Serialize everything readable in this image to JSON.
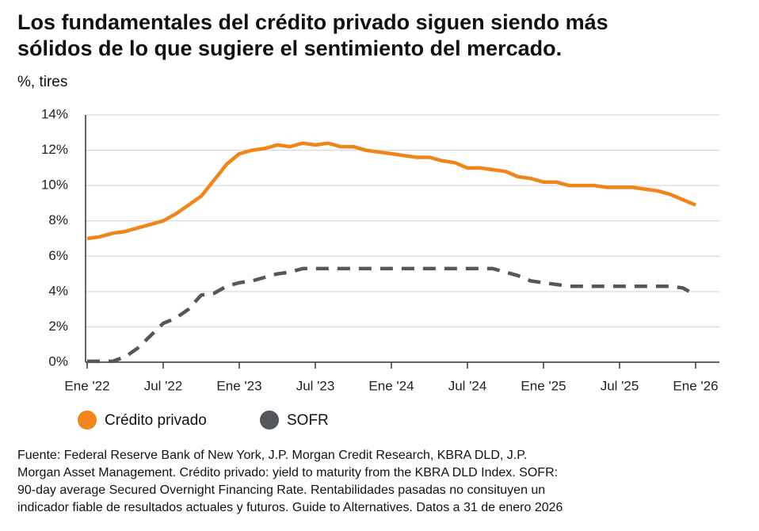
{
  "chart_data": {
    "type": "line",
    "title_lines": [
      "Los fundamentales del crédito privado siguen siendo más",
      "sólidos de lo que sugiere el sentimiento del mercado."
    ],
    "y_label": "%, tires",
    "categories": [
      "Ene '22",
      null,
      null,
      null,
      null,
      null,
      "Jul '22",
      null,
      null,
      null,
      null,
      null,
      "Ene '23",
      null,
      null,
      null,
      null,
      null,
      "Jul '23",
      null,
      null,
      null,
      null,
      null,
      "Ene '24",
      null,
      null,
      null,
      null,
      null,
      "Jul '24",
      null,
      null,
      null,
      null,
      null,
      "Ene '25",
      null,
      null,
      null,
      null,
      null,
      "Jul '25",
      null,
      null,
      null,
      null,
      null,
      "Ene '26"
    ],
    "series": [
      {
        "name": "Crédito privado",
        "color": "#f0851a",
        "style": "solid",
        "values": [
          7.0,
          7.1,
          7.3,
          7.4,
          7.6,
          7.8,
          8.0,
          8.4,
          8.9,
          9.4,
          10.3,
          11.2,
          11.8,
          12.0,
          12.1,
          12.3,
          12.2,
          12.4,
          12.3,
          12.4,
          12.2,
          12.2,
          12.0,
          11.9,
          11.8,
          11.7,
          11.6,
          11.6,
          11.4,
          11.3,
          11.0,
          11.0,
          10.9,
          10.8,
          10.5,
          10.4,
          10.2,
          10.2,
          10.0,
          10.0,
          10.0,
          9.9,
          9.9,
          9.9,
          9.8,
          9.7,
          9.5,
          9.2,
          8.9
        ]
      },
      {
        "name": "SOFR",
        "color": "#54585c",
        "style": "dashed",
        "values": [
          0.05,
          0.05,
          0.05,
          0.3,
          0.8,
          1.5,
          2.2,
          2.5,
          3.0,
          3.8,
          3.9,
          4.3,
          4.5,
          4.6,
          4.8,
          5.0,
          5.1,
          5.3,
          5.3,
          5.3,
          5.3,
          5.3,
          5.3,
          5.3,
          5.3,
          5.3,
          5.3,
          5.3,
          5.3,
          5.3,
          5.3,
          5.3,
          5.3,
          5.1,
          4.9,
          4.6,
          4.5,
          4.4,
          4.3,
          4.3,
          4.3,
          4.3,
          4.3,
          4.3,
          4.3,
          4.3,
          4.3,
          4.2,
          3.8
        ]
      }
    ],
    "ylim": [
      0,
      14
    ],
    "yticks": [
      {
        "value": 0,
        "label": "0%"
      },
      {
        "value": 2,
        "label": "2%"
      },
      {
        "value": 4,
        "label": "4%"
      },
      {
        "value": 6,
        "label": "6%"
      },
      {
        "value": 8,
        "label": "8%"
      },
      {
        "value": 10,
        "label": "10%"
      },
      {
        "value": 12,
        "label": "12%"
      },
      {
        "value": 14,
        "label": "14%"
      }
    ],
    "grid": true,
    "source_lines": [
      "Fuente: Federal Reserve Bank of New York, J.P. Morgan Credit Research, KBRA DLD, J.P.",
      "Morgan Asset Management. Crédito privado: yield to maturity from the KBRA DLD Index. SOFR:",
      "90-day average Secured Overnight Financing Rate. Rentabilidades pasadas no consituyen un",
      "indicador fiable de resultados actuales y futuros. Guide to Alternatives. Datos a 31 de enero 2026"
    ]
  }
}
